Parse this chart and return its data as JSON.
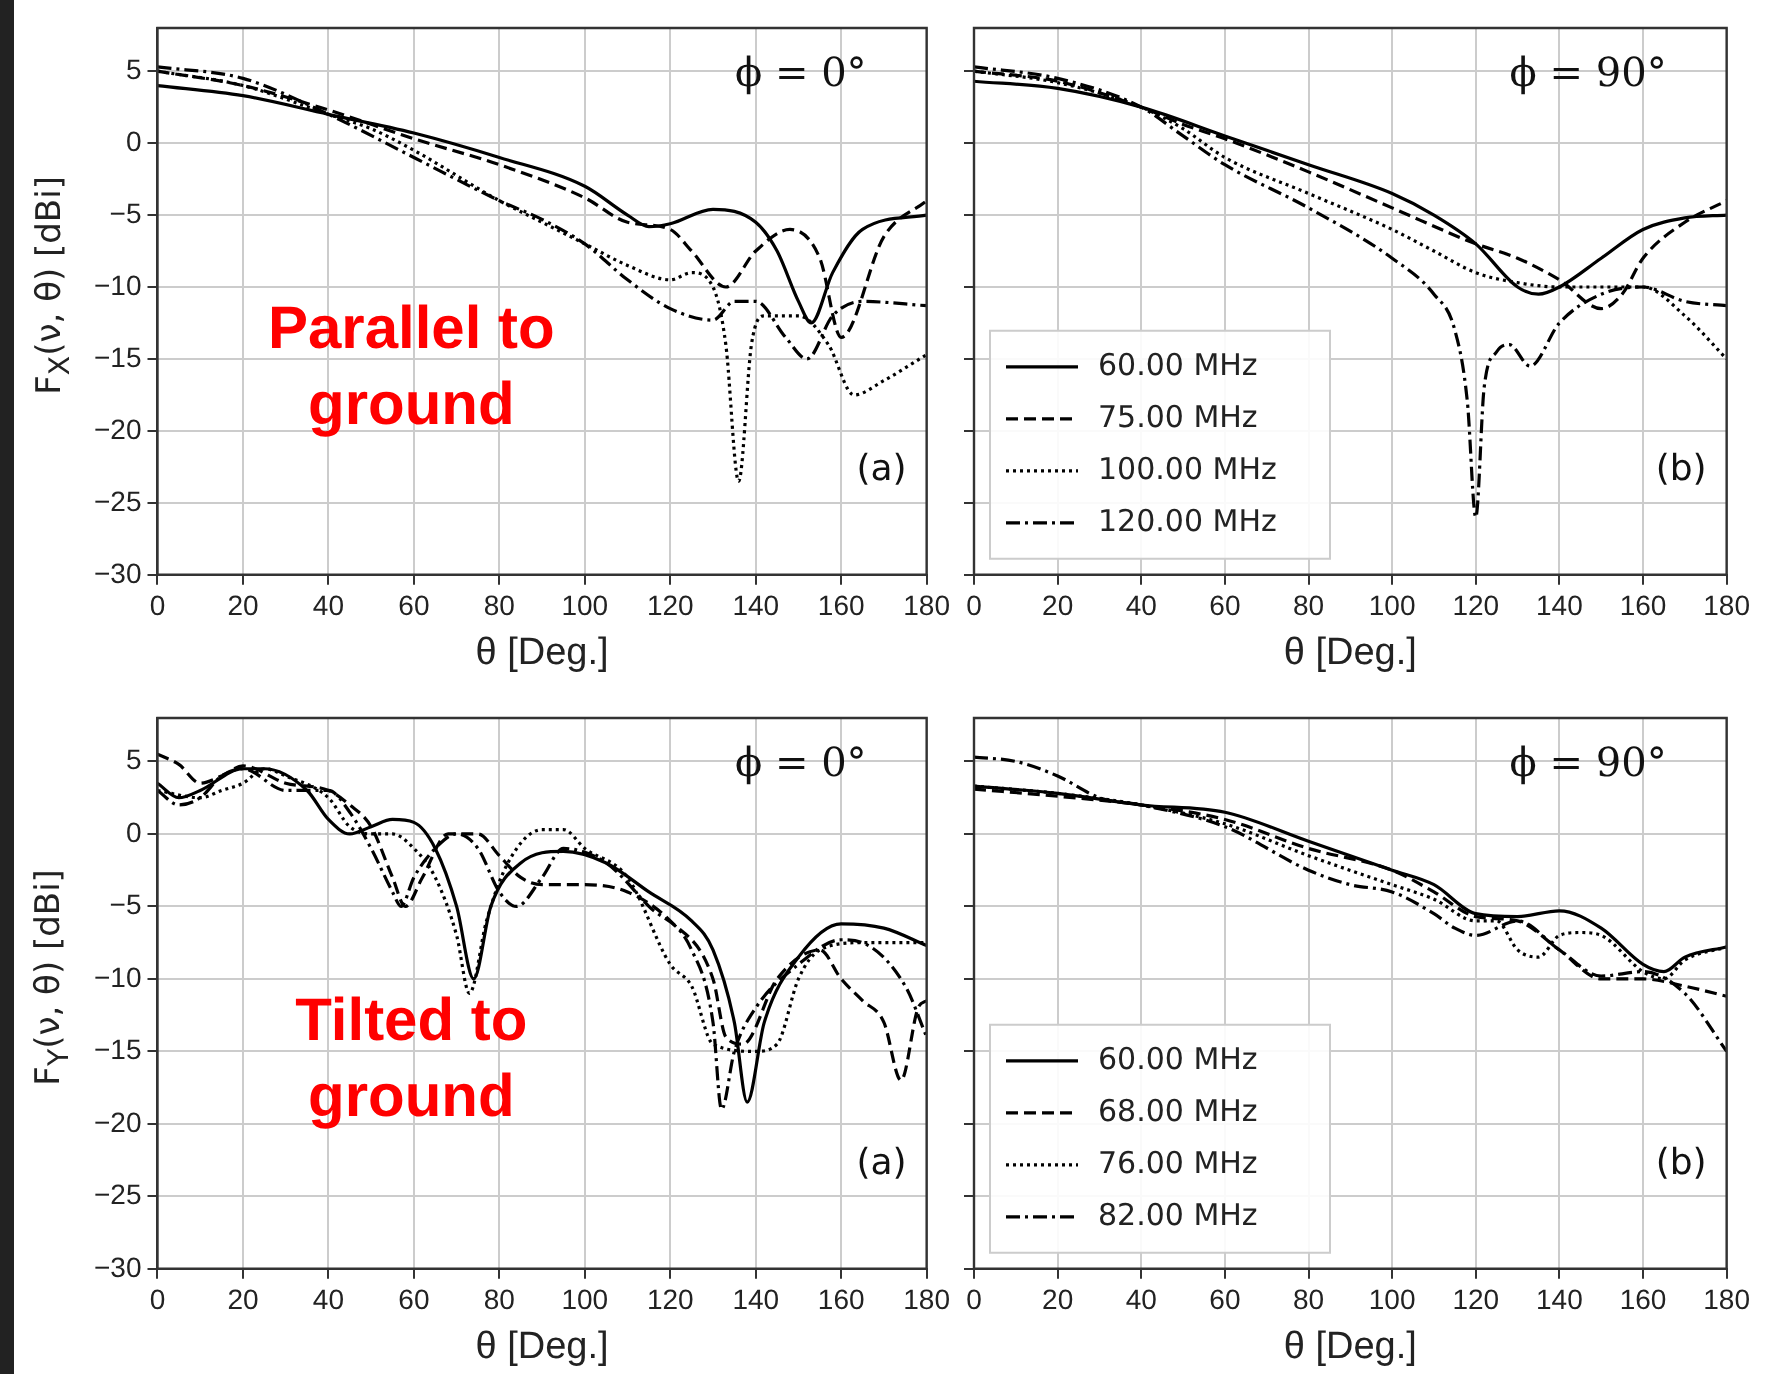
{
  "chart_data": [
    {
      "type": "line",
      "xlabel": "θ [Deg.]",
      "ylabel": "F$_{X}$(ν, θ) [dBi]",
      "xlim": [
        0,
        180
      ],
      "ylim": [
        -30,
        8
      ],
      "xticks": [
        0,
        20,
        40,
        60,
        80,
        100,
        120,
        140,
        160,
        180
      ],
      "yticks": [
        {
          "value": -30,
          "label": "−30"
        },
        {
          "value": -25,
          "label": "−25"
        },
        {
          "value": -20,
          "label": "−20"
        },
        {
          "value": -15,
          "label": "−15"
        },
        {
          "value": -10,
          "label": "−10"
        },
        {
          "value": -5,
          "label": "−5"
        },
        0,
        5
      ],
      "grid": true,
      "legend": false,
      "annotations": [
        "ϕ = 0°",
        "(a)",
        "Parallel to ground"
      ],
      "series": [
        {
          "color": "#000000",
          "line_style": "solid",
          "x": [
            0,
            20,
            40,
            60,
            80,
            100,
            110,
            115,
            120,
            130,
            140,
            145,
            150,
            153,
            158,
            165,
            180
          ],
          "values": [
            4,
            3.3,
            2,
            0.7,
            -1,
            -3,
            -5,
            -5.8,
            -5.6,
            -4.6,
            -5.5,
            -7.5,
            -11,
            -12.5,
            -9,
            -6,
            -5
          ]
        },
        {
          "color": "#000000",
          "line_style": "dashed",
          "x": [
            0,
            20,
            40,
            60,
            80,
            100,
            110,
            120,
            125,
            133,
            140,
            148,
            155,
            160,
            170,
            180
          ],
          "values": [
            5,
            4,
            2.3,
            0.3,
            -1.5,
            -3.8,
            -5.5,
            -6,
            -7.5,
            -10,
            -7.5,
            -6,
            -8,
            -13.5,
            -6.5,
            -4
          ]
        },
        {
          "color": "#000000",
          "line_style": "dotted",
          "x": [
            0,
            20,
            40,
            50,
            60,
            80,
            90,
            100,
            110,
            120,
            125,
            130,
            133,
            136,
            139,
            142,
            150,
            157,
            163,
            170,
            180
          ],
          "values": [
            5,
            4,
            2,
            1,
            -0.5,
            -4,
            -5.5,
            -7,
            -8.5,
            -9.5,
            -9,
            -10,
            -14,
            -23.5,
            -14,
            -12,
            -12,
            -14,
            -17.5,
            -16.5,
            -14.7
          ]
        },
        {
          "color": "#000000",
          "line_style": "dashdot",
          "x": [
            0,
            20,
            40,
            60,
            80,
            90,
            100,
            110,
            120,
            130,
            135,
            140,
            147,
            152,
            158,
            165,
            180
          ],
          "values": [
            5.3,
            4.5,
            2,
            -1,
            -4,
            -5.3,
            -7,
            -9.5,
            -11.5,
            -12.3,
            -11,
            -11,
            -13.5,
            -15,
            -12,
            -11,
            -11.3
          ]
        }
      ]
    },
    {
      "type": "line",
      "xlabel": "θ [Deg.]",
      "xlim": [
        0,
        180
      ],
      "ylim": [
        -30,
        8
      ],
      "xticks": [
        0,
        20,
        40,
        60,
        80,
        100,
        120,
        140,
        160,
        180
      ],
      "yticks": [
        -30,
        -25,
        -20,
        -15,
        -10,
        -5,
        0,
        5
      ],
      "tick_labels": "x",
      "grid": true,
      "legend": "bottom left",
      "annotations": [
        "ϕ = 90°",
        "(b)"
      ],
      "series": [
        {
          "name": "60.00 MHz",
          "color": "#000000",
          "line_style": "solid",
          "x": [
            0,
            20,
            40,
            60,
            80,
            100,
            110,
            120,
            130,
            135,
            140,
            150,
            160,
            170,
            180
          ],
          "values": [
            4.3,
            3.8,
            2.5,
            0.5,
            -1.5,
            -3.5,
            -5,
            -7,
            -10,
            -10.5,
            -10,
            -8,
            -6,
            -5.2,
            -5
          ]
        },
        {
          "name": "75.00 MHz",
          "color": "#000000",
          "line_style": "dashed",
          "x": [
            0,
            20,
            40,
            50,
            60,
            80,
            100,
            120,
            130,
            140,
            150,
            155,
            160,
            170,
            180
          ],
          "values": [
            5,
            4.3,
            2.5,
            1.3,
            0.3,
            -2,
            -4.5,
            -7,
            -8,
            -9.5,
            -11.5,
            -10.5,
            -8,
            -5.5,
            -4
          ]
        },
        {
          "name": "100.00 MHz",
          "color": "#000000",
          "line_style": "dotted",
          "x": [
            0,
            20,
            40,
            50,
            60,
            80,
            100,
            110,
            120,
            130,
            140,
            150,
            160,
            170,
            180
          ],
          "values": [
            5,
            4.2,
            2.5,
            1,
            -1,
            -3.5,
            -6,
            -7.5,
            -9,
            -9.7,
            -10,
            -10,
            -10,
            -12,
            -15
          ]
        },
        {
          "name": "120.00 MHz",
          "color": "#000000",
          "line_style": "dashdot",
          "x": [
            0,
            20,
            40,
            50,
            60,
            80,
            100,
            110,
            115,
            118,
            120,
            122,
            125,
            128,
            133,
            140,
            150,
            160,
            170,
            180
          ],
          "values": [
            5.3,
            4.5,
            2.5,
            0.5,
            -1.5,
            -4.5,
            -8,
            -10.5,
            -13,
            -18,
            -26,
            -17,
            -14.5,
            -14,
            -15.5,
            -12.5,
            -10.5,
            -10,
            -11,
            -11.3
          ]
        }
      ]
    },
    {
      "type": "line",
      "xlabel": "θ [Deg.]",
      "ylabel": "F$_{Y}$(ν, θ) [dBi]",
      "xlim": [
        0,
        180
      ],
      "ylim": [
        -30,
        8
      ],
      "xticks": [
        0,
        20,
        40,
        60,
        80,
        100,
        120,
        140,
        160,
        180
      ],
      "yticks": [
        {
          "value": -30,
          "label": "−30"
        },
        {
          "value": -25,
          "label": "−25"
        },
        {
          "value": -20,
          "label": "−20"
        },
        {
          "value": -15,
          "label": "−15"
        },
        {
          "value": -10,
          "label": "−10"
        },
        {
          "value": -5,
          "label": "−5"
        },
        0,
        5
      ],
      "grid": true,
      "legend": false,
      "annotations": [
        "ϕ = 0°",
        "(a)",
        "Tilted to ground"
      ],
      "series": [
        {
          "color": "#000000",
          "line_style": "solid",
          "x": [
            0,
            5,
            10,
            20,
            25,
            35,
            40,
            45,
            50,
            55,
            60,
            65,
            70,
            74,
            78,
            85,
            95,
            105,
            115,
            125,
            130,
            135,
            138,
            142,
            150,
            160,
            170,
            180
          ],
          "values": [
            3.5,
            2.5,
            3,
            4.5,
            4.5,
            3,
            1,
            0,
            0.5,
            1,
            0.8,
            -1,
            -5,
            -10,
            -5,
            -2,
            -1.2,
            -2,
            -4,
            -6,
            -8,
            -13,
            -18.5,
            -13,
            -8.5,
            -6.2,
            -6.5,
            -7.7
          ]
        },
        {
          "color": "#000000",
          "line_style": "dashed",
          "x": [
            0,
            5,
            10,
            15,
            20,
            30,
            40,
            45,
            50,
            55,
            58,
            62,
            68,
            75,
            80,
            85,
            90,
            100,
            110,
            120,
            130,
            133,
            137,
            145,
            155,
            160,
            165,
            170,
            174,
            178,
            180
          ],
          "values": [
            5.5,
            4.8,
            3.5,
            4,
            4.7,
            3.5,
            3,
            2,
            0.5,
            -3,
            -5,
            -3,
            0,
            0,
            -1.5,
            -3,
            -3.5,
            -3.5,
            -4,
            -6,
            -10,
            -14,
            -14.5,
            -10,
            -8,
            -10,
            -11.5,
            -13,
            -17,
            -12,
            -11.5
          ]
        },
        {
          "color": "#000000",
          "line_style": "dotted",
          "x": [
            0,
            10,
            15,
            20,
            25,
            30,
            40,
            45,
            50,
            55,
            60,
            65,
            70,
            73,
            77,
            82,
            90,
            95,
            100,
            110,
            120,
            125,
            130,
            140,
            145,
            150,
            155,
            165,
            180
          ],
          "values": [
            3,
            2.5,
            3,
            3.5,
            4.5,
            4,
            2.5,
            0.5,
            0,
            0,
            -1,
            -3,
            -7,
            -11,
            -6,
            -2,
            0.3,
            0.3,
            -1,
            -3,
            -9,
            -10.5,
            -14.5,
            -15,
            -14.5,
            -10,
            -8,
            -7.5,
            -7.5
          ]
        },
        {
          "color": "#000000",
          "line_style": "dashdot",
          "x": [
            0,
            5,
            10,
            15,
            20,
            30,
            40,
            45,
            50,
            55,
            57,
            60,
            65,
            70,
            75,
            80,
            84,
            90,
            95,
            105,
            115,
            125,
            130,
            132,
            135,
            140,
            150,
            160,
            165,
            175,
            180
          ],
          "values": [
            3,
            2,
            2.5,
            4,
            4.5,
            3,
            3,
            1.5,
            -1,
            -4,
            -5,
            -3,
            -1,
            0,
            -1,
            -4,
            -5,
            -3,
            -1,
            -2,
            -5,
            -8,
            -13,
            -19,
            -15,
            -12,
            -9,
            -7.3,
            -7.5,
            -10.5,
            -14
          ]
        }
      ]
    },
    {
      "type": "line",
      "xlabel": "θ [Deg.]",
      "xlim": [
        0,
        180
      ],
      "ylim": [
        -30,
        8
      ],
      "xticks": [
        0,
        20,
        40,
        60,
        80,
        100,
        120,
        140,
        160,
        180
      ],
      "yticks": [
        -30,
        -25,
        -20,
        -15,
        -10,
        -5,
        0,
        5
      ],
      "tick_labels": "x",
      "grid": true,
      "legend": "bottom left",
      "annotations": [
        "ϕ = 90°",
        "(b)"
      ],
      "series": [
        {
          "name": "60.00 MHz",
          "color": "#000000",
          "line_style": "solid",
          "x": [
            0,
            20,
            40,
            60,
            80,
            100,
            110,
            120,
            130,
            140,
            150,
            160,
            165,
            170,
            180
          ],
          "values": [
            3.3,
            2.8,
            2,
            1.5,
            -0.5,
            -2.5,
            -3.5,
            -5.5,
            -5.7,
            -5.3,
            -6.5,
            -9,
            -9.5,
            -8.5,
            -7.8
          ]
        },
        {
          "name": "68.00 MHz",
          "color": "#000000",
          "line_style": "dashed",
          "x": [
            0,
            20,
            40,
            60,
            80,
            100,
            110,
            120,
            130,
            140,
            150,
            160,
            170,
            180
          ],
          "values": [
            3.1,
            2.6,
            2,
            1,
            -1,
            -2.5,
            -4,
            -5.7,
            -6,
            -8,
            -10,
            -10,
            -10.5,
            -11.2
          ]
        },
        {
          "name": "76.00 MHz",
          "color": "#000000",
          "line_style": "dotted",
          "x": [
            0,
            20,
            40,
            60,
            80,
            100,
            110,
            120,
            125,
            130,
            135,
            140,
            145,
            150,
            160,
            165,
            170,
            180
          ],
          "values": [
            3.3,
            2.8,
            2,
            0.7,
            -1.5,
            -3.5,
            -4.5,
            -6,
            -6,
            -8,
            -8.5,
            -7,
            -6.8,
            -7,
            -9.5,
            -10,
            -8.7,
            -7.8
          ]
        },
        {
          "name": "82.00 MHz",
          "color": "#000000",
          "line_style": "dashdot",
          "x": [
            0,
            10,
            20,
            30,
            40,
            60,
            80,
            90,
            100,
            110,
            115,
            120,
            130,
            140,
            150,
            160,
            170,
            180
          ],
          "values": [
            5.3,
            5,
            4,
            2.5,
            2,
            0.5,
            -2.5,
            -3.5,
            -4,
            -5.5,
            -6.5,
            -7,
            -6,
            -8,
            -9.8,
            -9.5,
            -11,
            -15
          ]
        }
      ]
    }
  ]
}
